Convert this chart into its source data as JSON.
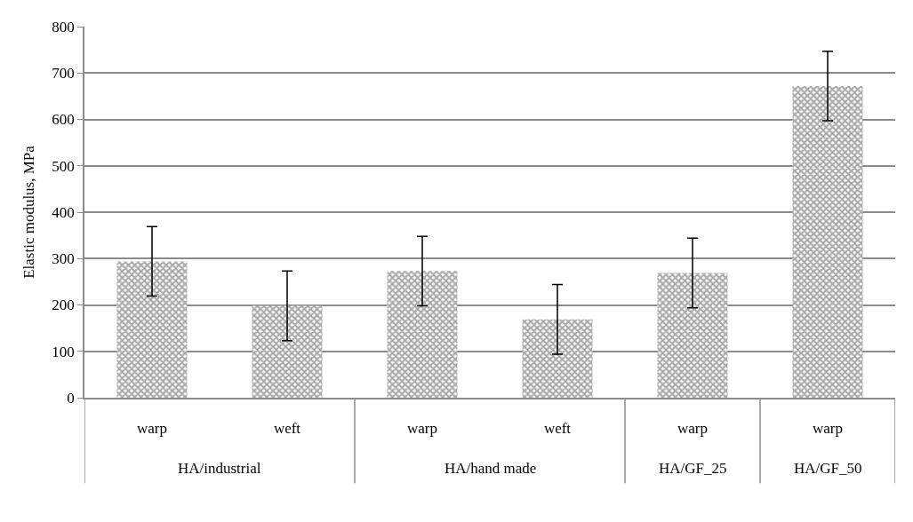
{
  "chart_data": {
    "type": "bar",
    "ylabel": "Elastic modulus, MPa",
    "categories": [
      "warp",
      "weft",
      "warp",
      "weft",
      "warp",
      "warp"
    ],
    "values": [
      294,
      198,
      273,
      169,
      269,
      672
    ],
    "errors": [
      75,
      75,
      75,
      75,
      75,
      75
    ],
    "color": "#595959",
    "annotations": [
      "HA/industrial",
      "HA/hand made",
      "HA/GF_25",
      "HA/GF_50"
    ],
    "ylim": [
      0,
      800
    ],
    "yticks": [
      0,
      100,
      200,
      300,
      400,
      500,
      600,
      700,
      800
    ],
    "grid": "y"
  }
}
